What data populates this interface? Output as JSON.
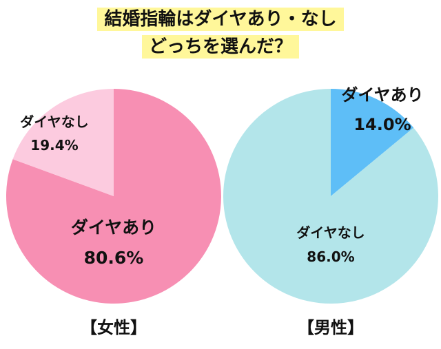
{
  "title_lines": [
    "結婚指輪はダイヤあり・なし",
    "どっちを選んだ？"
  ],
  "chart_data": [
    {
      "type": "pie",
      "title": "【女性】",
      "slices": [
        {
          "label": "ダイヤあり",
          "value": 80.6,
          "value_label": "80.6%",
          "color": "#f78fb3"
        },
        {
          "label": "ダイヤなし",
          "value": 19.4,
          "value_label": "19.4%",
          "color": "#fccbdf"
        }
      ]
    },
    {
      "type": "pie",
      "title": "【男性】",
      "slices": [
        {
          "label": "ダイヤあり",
          "value": 14.0,
          "value_label": "14.0%",
          "color": "#5ebef7"
        },
        {
          "label": "ダイヤなし",
          "value": 86.0,
          "value_label": "86.0%",
          "color": "#b3e5ea"
        }
      ]
    }
  ]
}
